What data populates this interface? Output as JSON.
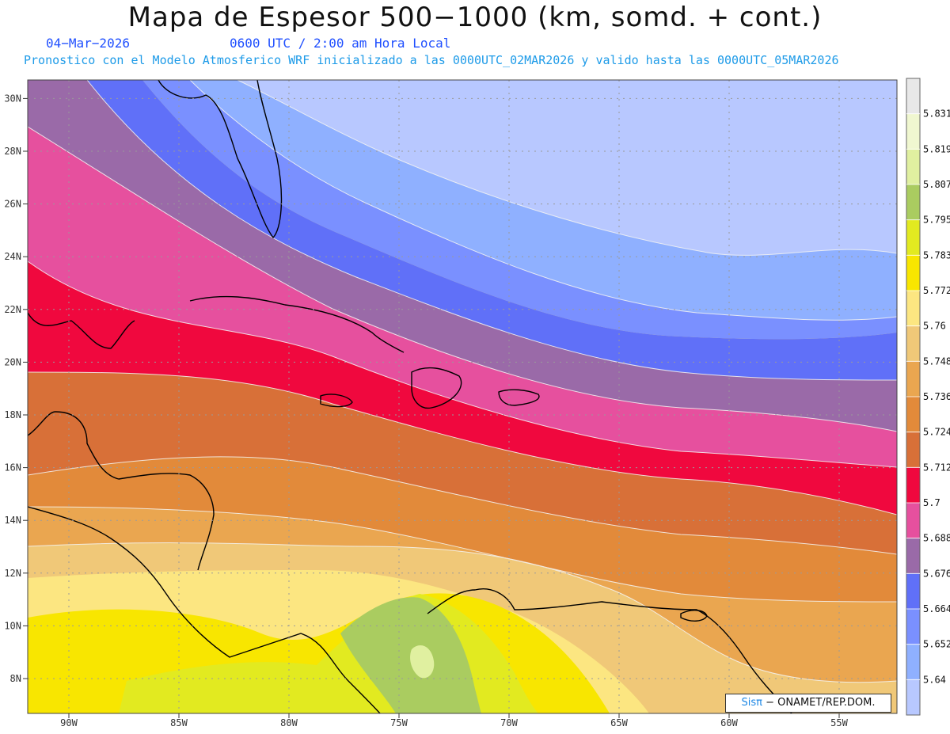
{
  "title": "Mapa de Espesor 500−1000 (km, somd. + cont.)",
  "date": "04−Mar−2026",
  "time_label": "0600 UTC / 2:00 am Hora Local",
  "forecast_note": "Pronostico con el Modelo Atmosferico WRF inicializado a las 0000UTC_02MAR2026 y valido hasta las  0000UTC_05MAR2026",
  "credit": {
    "logo": "Sisπ",
    "text": " − ONAMET/REP.DOM."
  },
  "lon_ticks": [
    "90W",
    "85W",
    "80W",
    "75W",
    "70W",
    "65W",
    "60W",
    "55W"
  ],
  "lat_ticks": [
    "8N",
    "10N",
    "12N",
    "14N",
    "16N",
    "18N",
    "20N",
    "22N",
    "24N",
    "26N",
    "28N",
    "30N"
  ],
  "colorbar": {
    "labels": [
      "5.64",
      "5.652",
      "5.664",
      "5.676",
      "5.688",
      "5.7",
      "5.712",
      "5.724",
      "5.736",
      "5.748",
      "5.76",
      "5.772",
      "5.783",
      "5.795",
      "5.807",
      "5.819",
      "5.831"
    ],
    "colors": [
      "#b8c8ff",
      "#8fb0ff",
      "#7a90ff",
      "#6070f8",
      "#9a6aa8",
      "#e6509e",
      "#f0083e",
      "#d87038",
      "#e28a3a",
      "#eaa650",
      "#f0c878",
      "#fce681",
      "#f8e600",
      "#e2ea20",
      "#aacc60",
      "#e0f0a0",
      "#f0f7d0",
      "#e8e8e8"
    ]
  }
}
